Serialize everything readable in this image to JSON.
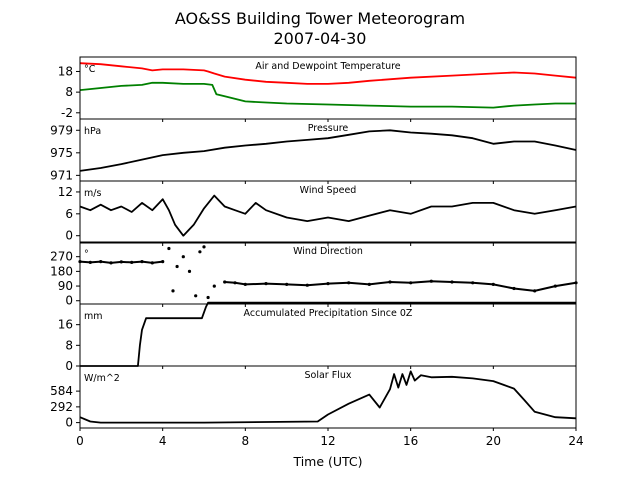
{
  "figure": {
    "title": "AO&SS Building Tower Meteorogram",
    "subtitle": "2007-04-30",
    "xlabel": "Time (UTC)"
  },
  "chart_data": [
    {
      "type": "line",
      "title": "Air and Dewpoint Temperature",
      "unit": "°C",
      "xlim": [
        0,
        24
      ],
      "ylim": [
        -5,
        25
      ],
      "yticks": [
        -2,
        8,
        18
      ],
      "series": [
        {
          "color": "#ff0000",
          "x": [
            0,
            1,
            2,
            3,
            3.5,
            4,
            5,
            6,
            6.2,
            6.5,
            7,
            8,
            9,
            10,
            11,
            12,
            13,
            14,
            16,
            18,
            20,
            21,
            22,
            23,
            24
          ],
          "y": [
            22,
            21.5,
            20.5,
            19.5,
            18.5,
            19,
            19,
            18.5,
            18,
            17,
            15.5,
            14,
            13,
            12.5,
            12,
            12,
            12.5,
            13.5,
            15,
            16,
            17,
            17.5,
            17,
            16,
            15
          ]
        },
        {
          "color": "#008000",
          "x": [
            0,
            1,
            2,
            3,
            3.5,
            4,
            5,
            6,
            6.4,
            6.6,
            7,
            8,
            9,
            10,
            12,
            14,
            16,
            18,
            20,
            21,
            22,
            23,
            24
          ],
          "y": [
            9,
            10,
            11,
            11.5,
            12.5,
            12.5,
            12,
            12,
            11.5,
            7,
            6,
            3.5,
            3,
            2.5,
            2,
            1.5,
            1,
            1,
            0.5,
            1.5,
            2,
            2.5,
            2.5
          ]
        }
      ]
    },
    {
      "type": "line",
      "title": "Pressure",
      "unit": "hPa",
      "xlim": [
        0,
        24
      ],
      "ylim": [
        970,
        981
      ],
      "yticks": [
        971,
        975,
        979
      ],
      "series": [
        {
          "color": "#000000",
          "x": [
            0,
            1,
            2,
            3,
            4,
            5,
            6,
            7,
            8,
            9,
            10,
            11,
            12,
            13,
            14,
            15,
            16,
            17,
            18,
            19,
            20,
            21,
            22,
            23,
            24
          ],
          "y": [
            971.8,
            972.3,
            973,
            973.8,
            974.6,
            975,
            975.3,
            975.9,
            976.3,
            976.6,
            977,
            977.3,
            977.6,
            978.2,
            978.8,
            979,
            978.6,
            978.4,
            978.1,
            977.6,
            976.6,
            977,
            977,
            976.3,
            975.5
          ]
        }
      ]
    },
    {
      "type": "line",
      "title": "Wind Speed",
      "unit": "m/s",
      "xlim": [
        0,
        24
      ],
      "ylim": [
        -2,
        15
      ],
      "yticks": [
        0,
        6,
        12
      ],
      "series": [
        {
          "color": "#000000",
          "x": [
            0,
            0.5,
            1,
            1.5,
            2,
            2.5,
            3,
            3.5,
            4,
            4.3,
            4.6,
            5,
            5.5,
            6,
            6.5,
            7,
            7.5,
            8,
            8.5,
            9,
            10,
            11,
            12,
            13,
            14,
            15,
            16,
            17,
            18,
            19,
            20,
            21,
            22,
            23,
            24
          ],
          "y": [
            8,
            7,
            8.5,
            7,
            8,
            6.5,
            9,
            7,
            10,
            7,
            3,
            0,
            3,
            7.5,
            11,
            8,
            7,
            6,
            9,
            7,
            5,
            4,
            5,
            4,
            5.5,
            7,
            6,
            8,
            8,
            9,
            9,
            7,
            6,
            7,
            8
          ]
        }
      ]
    },
    {
      "type": "scatter",
      "title": "Wind Direction",
      "unit": "°",
      "xlim": [
        0,
        24
      ],
      "ylim": [
        -20,
        360
      ],
      "yticks": [
        0,
        90,
        180,
        270
      ],
      "series": [
        {
          "color": "#000000",
          "x": [
            0,
            0.5,
            1,
            1.5,
            2,
            2.5,
            3,
            3.5,
            4,
            4.3,
            4.5,
            4.7,
            5,
            5.3,
            5.6,
            5.8,
            6,
            6.2,
            6.5,
            7,
            7.5,
            8,
            9,
            10,
            11,
            12,
            13,
            14,
            15,
            16,
            17,
            18,
            19,
            20,
            21,
            22,
            23,
            24
          ],
          "y": [
            240,
            235,
            240,
            232,
            238,
            235,
            240,
            232,
            240,
            320,
            60,
            210,
            270,
            180,
            30,
            300,
            330,
            20,
            90,
            115,
            110,
            100,
            105,
            100,
            95,
            105,
            110,
            100,
            115,
            110,
            120,
            115,
            110,
            100,
            75,
            60,
            90,
            110
          ]
        }
      ]
    },
    {
      "type": "line",
      "title": "Accumulated Precipitation Since 0Z",
      "unit": "mm",
      "xlim": [
        0,
        24
      ],
      "ylim": [
        0,
        24
      ],
      "yticks": [
        0,
        8,
        16
      ],
      "series": [
        {
          "color": "#000000",
          "x": [
            0,
            2.8,
            2.9,
            3.0,
            3.2,
            5.9,
            6.1,
            6.2,
            24
          ],
          "y": [
            0,
            0,
            8,
            14,
            18.5,
            18.5,
            23,
            24.5,
            24.5
          ]
        }
      ]
    },
    {
      "type": "line",
      "title": "Solar Flux",
      "unit": "W/m^2",
      "xlim": [
        0,
        24
      ],
      "ylim": [
        -100,
        1050
      ],
      "yticks": [
        0,
        292,
        584
      ],
      "series": [
        {
          "color": "#000000",
          "x": [
            0,
            0.5,
            1,
            6,
            11.5,
            12,
            13,
            14,
            14.5,
            15,
            15.2,
            15.4,
            15.6,
            15.8,
            16,
            16.2,
            16.5,
            17,
            18,
            19,
            20,
            20.5,
            21,
            21.5,
            22,
            22.5,
            23,
            24
          ],
          "y": [
            100,
            20,
            0,
            0,
            20,
            150,
            350,
            520,
            280,
            620,
            900,
            650,
            900,
            700,
            950,
            780,
            880,
            840,
            850,
            820,
            770,
            700,
            630,
            420,
            200,
            150,
            100,
            80
          ]
        }
      ]
    }
  ],
  "xaxis": {
    "xlim": [
      0,
      24
    ],
    "xticks": [
      0,
      4,
      8,
      12,
      16,
      20,
      24
    ]
  }
}
